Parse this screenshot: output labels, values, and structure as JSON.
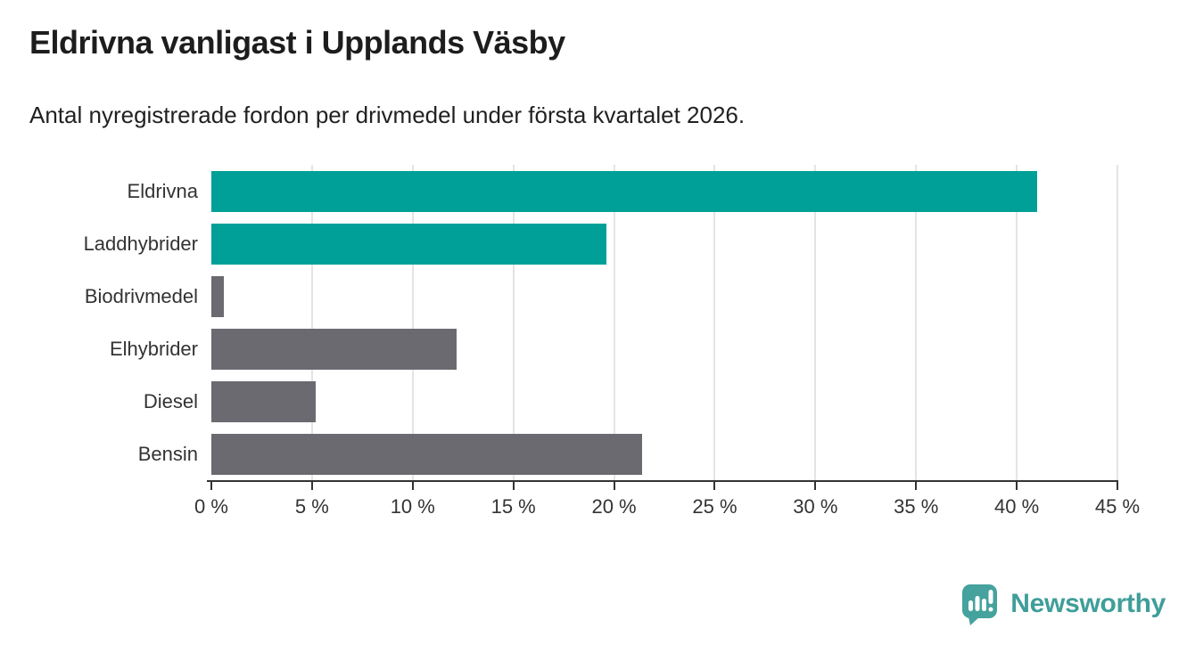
{
  "header": {
    "title": "Eldrivna vanligast i Upplands Väsby",
    "subtitle": "Antal nyregistrerade fordon per drivmedel under första kvartalet 2026."
  },
  "chart_data": {
    "type": "bar",
    "orientation": "horizontal",
    "title": "Eldrivna vanligast i Upplands Väsby",
    "subtitle": "Antal nyregistrerade fordon per drivmedel under första kvartalet 2026.",
    "categories": [
      "Eldrivna",
      "Laddhybrider",
      "Biodrivmedel",
      "Elhybrider",
      "Diesel",
      "Bensin"
    ],
    "values": [
      41.0,
      19.6,
      0.6,
      12.2,
      5.2,
      21.4
    ],
    "unit": "%",
    "xlim": [
      0,
      45
    ],
    "x_ticks": [
      0,
      5,
      10,
      15,
      20,
      25,
      30,
      35,
      40,
      45
    ],
    "x_tick_labels": [
      "0 %",
      "5 %",
      "10 %",
      "15 %",
      "20 %",
      "25 %",
      "30 %",
      "35 %",
      "40 %",
      "45 %"
    ],
    "grid": "vertical",
    "legend": "none",
    "colors": {
      "highlight": "#00a098",
      "base": "#6b6a71",
      "gridline": "#e4e4e4",
      "axis": "#333333"
    },
    "bar_colors": [
      "#00a098",
      "#00a098",
      "#6b6a71",
      "#6b6a71",
      "#6b6a71",
      "#6b6a71"
    ]
  },
  "footer": {
    "brand": "Newsworthy",
    "brand_color": "#3f9e99",
    "logo_icon": "bar-chart-speech-bubble-icon"
  }
}
